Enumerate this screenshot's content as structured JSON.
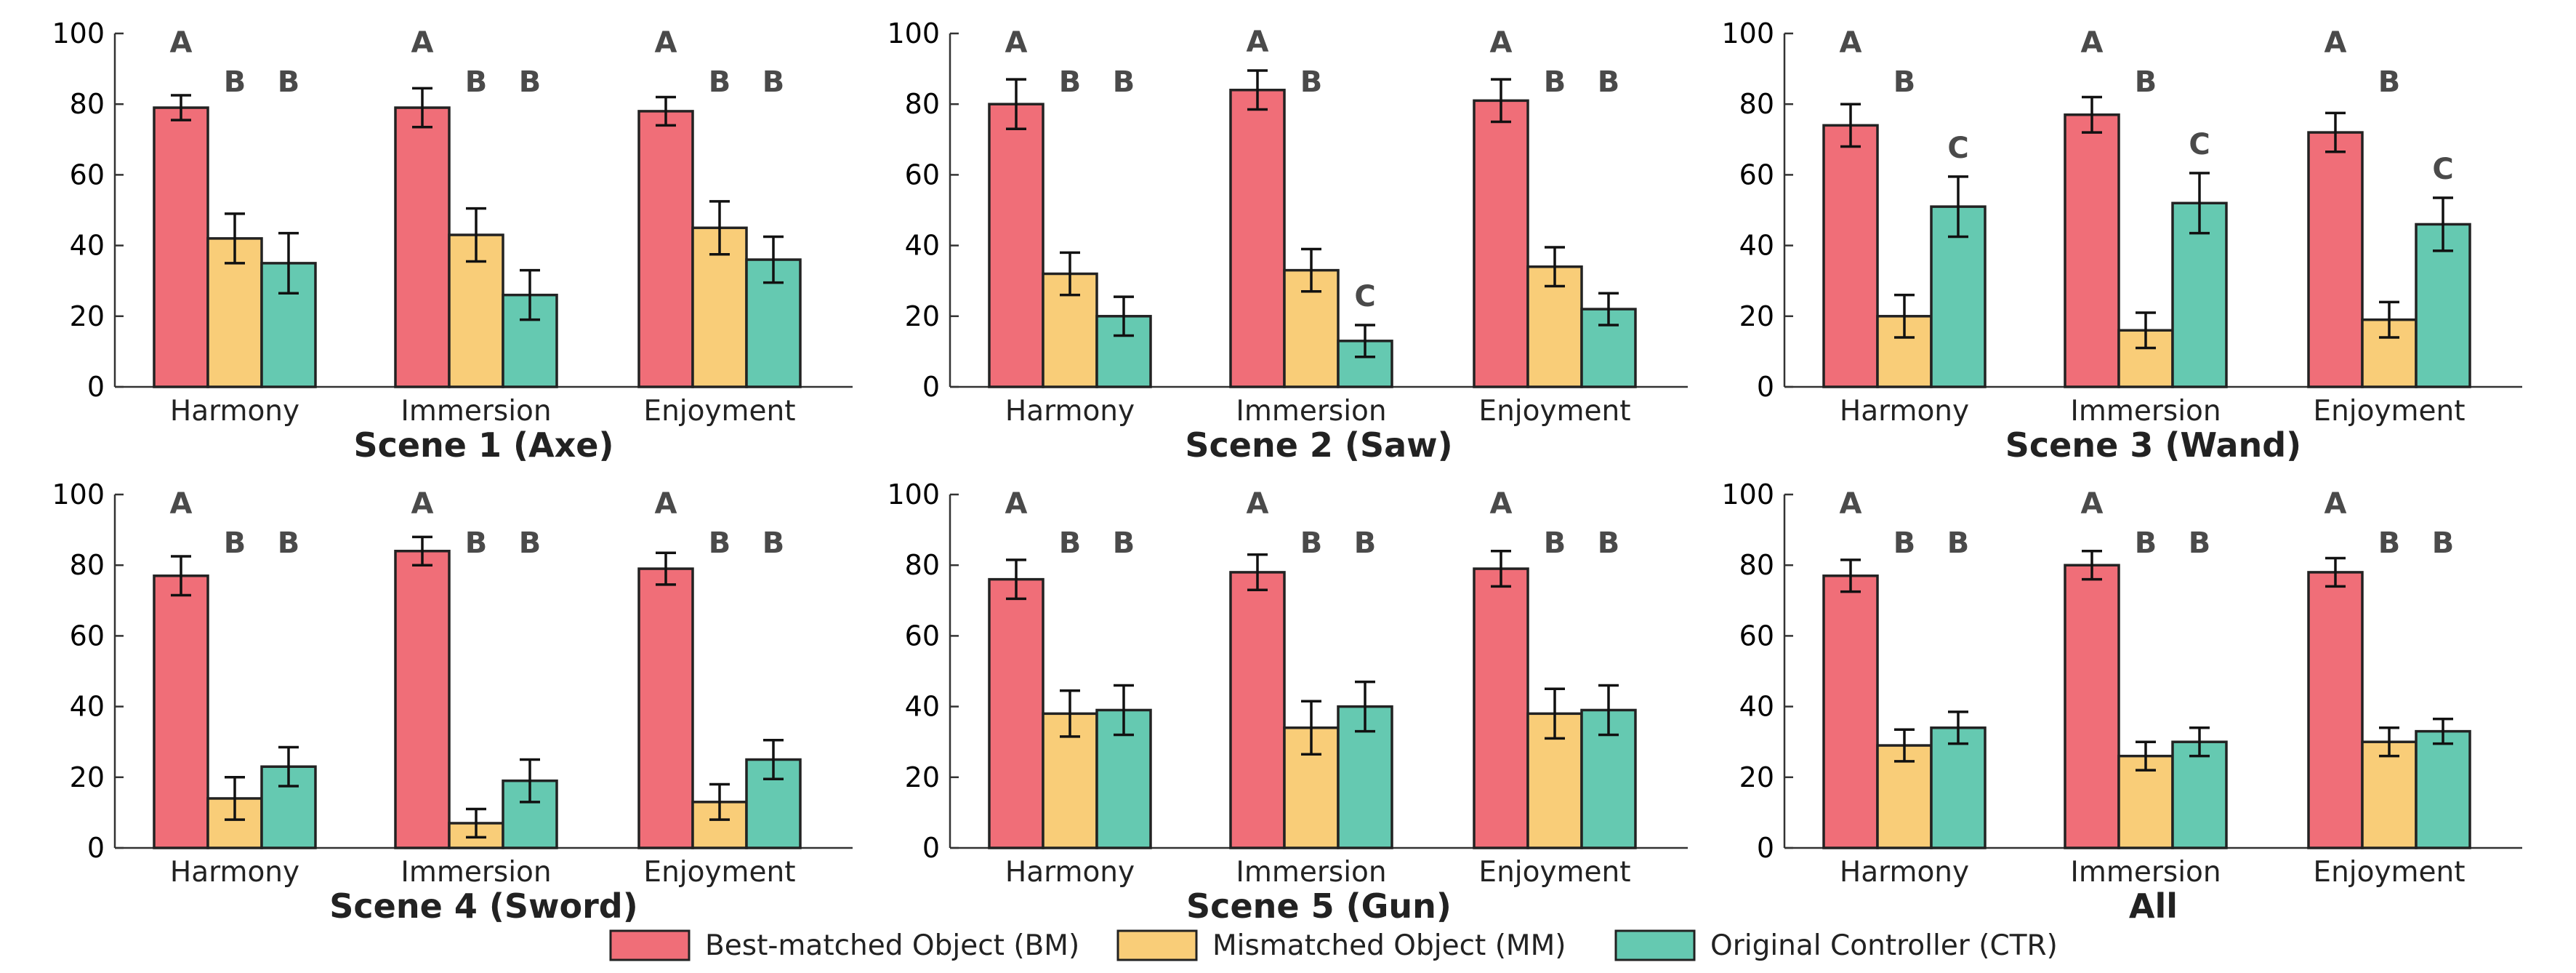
{
  "chart_data": [
    {
      "type": "bar",
      "title": "Scene 1 (Axe)",
      "categories": [
        "Harmony",
        "Immersion",
        "Enjoyment"
      ],
      "ylim": [
        0,
        100
      ],
      "yticks": [
        0,
        20,
        40,
        60,
        80,
        100
      ],
      "series": [
        {
          "name": "Best-matched Object (BM)",
          "values": [
            79,
            79,
            78
          ],
          "errors": [
            3.5,
            5.5,
            4
          ],
          "letters": [
            "A",
            "A",
            "A"
          ]
        },
        {
          "name": "Mismatched Object (MM)",
          "values": [
            42,
            43,
            45
          ],
          "errors": [
            7,
            7.5,
            7.5
          ],
          "letters": [
            "B",
            "B",
            "B"
          ]
        },
        {
          "name": "Original Controller (CTR)",
          "values": [
            35,
            26,
            36
          ],
          "errors": [
            8.5,
            7,
            6.5
          ],
          "letters": [
            "B",
            "B",
            "B"
          ]
        }
      ]
    },
    {
      "type": "bar",
      "title": "Scene 2 (Saw)",
      "categories": [
        "Harmony",
        "Immersion",
        "Enjoyment"
      ],
      "ylim": [
        0,
        100
      ],
      "yticks": [
        0,
        20,
        40,
        60,
        80,
        100
      ],
      "series": [
        {
          "name": "Best-matched Object (BM)",
          "values": [
            80,
            84,
            81
          ],
          "errors": [
            7,
            5.5,
            6
          ],
          "letters": [
            "A",
            "A",
            "A"
          ]
        },
        {
          "name": "Mismatched Object (MM)",
          "values": [
            32,
            33,
            34
          ],
          "errors": [
            6,
            6,
            5.5
          ],
          "letters": [
            "B",
            "B",
            "B"
          ]
        },
        {
          "name": "Original Controller (CTR)",
          "values": [
            20,
            13,
            22
          ],
          "errors": [
            5.5,
            4.5,
            4.5
          ],
          "letters": [
            "B",
            "C",
            "B"
          ]
        }
      ]
    },
    {
      "type": "bar",
      "title": "Scene 3 (Wand)",
      "categories": [
        "Harmony",
        "Immersion",
        "Enjoyment"
      ],
      "ylim": [
        0,
        100
      ],
      "yticks": [
        0,
        20,
        40,
        60,
        80,
        100
      ],
      "series": [
        {
          "name": "Best-matched Object (BM)",
          "values": [
            74,
            77,
            72
          ],
          "errors": [
            6,
            5,
            5.5
          ],
          "letters": [
            "A",
            "A",
            "A"
          ]
        },
        {
          "name": "Mismatched Object (MM)",
          "values": [
            20,
            16,
            19
          ],
          "errors": [
            6,
            5,
            5
          ],
          "letters": [
            "B",
            "B",
            "B"
          ]
        },
        {
          "name": "Original Controller (CTR)",
          "values": [
            51,
            52,
            46
          ],
          "errors": [
            8.5,
            8.5,
            7.5
          ],
          "letters": [
            "C",
            "C",
            "C"
          ]
        }
      ]
    },
    {
      "type": "bar",
      "title": "Scene 4 (Sword)",
      "categories": [
        "Harmony",
        "Immersion",
        "Enjoyment"
      ],
      "ylim": [
        0,
        100
      ],
      "yticks": [
        0,
        20,
        40,
        60,
        80,
        100
      ],
      "series": [
        {
          "name": "Best-matched Object (BM)",
          "values": [
            77,
            84,
            79
          ],
          "errors": [
            5.5,
            4,
            4.5
          ],
          "letters": [
            "A",
            "A",
            "A"
          ]
        },
        {
          "name": "Mismatched Object (MM)",
          "values": [
            14,
            7,
            13
          ],
          "errors": [
            6,
            4,
            5
          ],
          "letters": [
            "B",
            "B",
            "B"
          ]
        },
        {
          "name": "Original Controller (CTR)",
          "values": [
            23,
            19,
            25
          ],
          "errors": [
            5.5,
            6,
            5.5
          ],
          "letters": [
            "B",
            "B",
            "B"
          ]
        }
      ]
    },
    {
      "type": "bar",
      "title": "Scene 5 (Gun)",
      "categories": [
        "Harmony",
        "Immersion",
        "Enjoyment"
      ],
      "ylim": [
        0,
        100
      ],
      "yticks": [
        0,
        20,
        40,
        60,
        80,
        100
      ],
      "series": [
        {
          "name": "Best-matched Object (BM)",
          "values": [
            76,
            78,
            79
          ],
          "errors": [
            5.5,
            5,
            5
          ],
          "letters": [
            "A",
            "A",
            "A"
          ]
        },
        {
          "name": "Mismatched Object (MM)",
          "values": [
            38,
            34,
            38
          ],
          "errors": [
            6.5,
            7.5,
            7
          ],
          "letters": [
            "B",
            "B",
            "B"
          ]
        },
        {
          "name": "Original Controller (CTR)",
          "values": [
            39,
            40,
            39
          ],
          "errors": [
            7,
            7,
            7
          ],
          "letters": [
            "B",
            "B",
            "B"
          ]
        }
      ]
    },
    {
      "type": "bar",
      "title": "All",
      "categories": [
        "Harmony",
        "Immersion",
        "Enjoyment"
      ],
      "ylim": [
        0,
        100
      ],
      "yticks": [
        0,
        20,
        40,
        60,
        80,
        100
      ],
      "series": [
        {
          "name": "Best-matched Object (BM)",
          "values": [
            77,
            80,
            78
          ],
          "errors": [
            4.5,
            4,
            4
          ],
          "letters": [
            "A",
            "A",
            "A"
          ]
        },
        {
          "name": "Mismatched Object (MM)",
          "values": [
            29,
            26,
            30
          ],
          "errors": [
            4.5,
            4,
            4
          ],
          "letters": [
            "B",
            "B",
            "B"
          ]
        },
        {
          "name": "Original Controller (CTR)",
          "values": [
            34,
            30,
            33
          ],
          "errors": [
            4.5,
            4,
            3.5
          ],
          "letters": [
            "B",
            "B",
            "B"
          ]
        }
      ]
    }
  ],
  "legend": {
    "placement": "bottom-center",
    "items": [
      {
        "label": "Best-matched Object (BM)",
        "color": "#f06e78"
      },
      {
        "label": "Mismatched Object (MM)",
        "color": "#f9cd78"
      },
      {
        "label": "Original Controller (CTR)",
        "color": "#65c9b1"
      }
    ]
  },
  "colors": {
    "bm": "#f06e78",
    "mm": "#f9cd78",
    "ctr": "#65c9b1",
    "outline": "#222222",
    "letters": "#4a4a4a"
  }
}
